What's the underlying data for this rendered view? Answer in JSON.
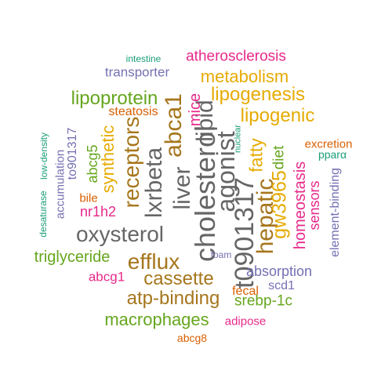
{
  "palette": {
    "teal": "#1b9e77",
    "orange": "#d95f02",
    "purple": "#7570b3",
    "magenta": "#e7298a",
    "green": "#66a61e",
    "gold": "#e6ab02",
    "brown": "#a6761d",
    "gray": "#666666"
  },
  "words": [
    {
      "text": "intestine",
      "color": "#1b9e77"
    },
    {
      "text": "atherosclerosis",
      "color": "#e7298a"
    },
    {
      "text": "transporter",
      "color": "#7570b3"
    },
    {
      "text": "metabolism",
      "color": "#e6ab02"
    },
    {
      "text": "lipogenesis",
      "color": "#e6ab02"
    },
    {
      "text": "lipoprotein",
      "color": "#66a61e"
    },
    {
      "text": "lipogenic",
      "color": "#e6ab02"
    },
    {
      "text": "steatosis",
      "color": "#d95f02"
    },
    {
      "text": "to901317",
      "color": "#7570b3"
    },
    {
      "text": "low-density",
      "color": "#1b9e77"
    },
    {
      "text": "accumulation",
      "color": "#7570b3"
    },
    {
      "text": "abcg5",
      "color": "#66a61e"
    },
    {
      "text": "synthetic",
      "color": "#e6ab02"
    },
    {
      "text": "receptors",
      "color": "#a6761d"
    },
    {
      "text": "lxrbeta",
      "color": "#666666"
    },
    {
      "text": "liver",
      "color": "#666666"
    },
    {
      "text": "abca1",
      "color": "#a6761d"
    },
    {
      "text": "cholesterol",
      "color": "#666666"
    },
    {
      "text": "lipid",
      "color": "#666666"
    },
    {
      "text": "agonist",
      "color": "#666666"
    },
    {
      "text": "mice",
      "color": "#e7298a"
    },
    {
      "text": "t0901317",
      "color": "#666666"
    },
    {
      "text": "hepatic",
      "color": "#a6761d"
    },
    {
      "text": "fatty",
      "color": "#e6ab02"
    },
    {
      "text": "nuclear",
      "color": "#1b9e77"
    },
    {
      "text": "gw3965",
      "color": "#e6ab02"
    },
    {
      "text": "diet",
      "color": "#66a61e"
    },
    {
      "text": "excretion",
      "color": "#d95f02"
    },
    {
      "text": "pparα",
      "color": "#1b9e77"
    },
    {
      "text": "homeostasis",
      "color": "#e7298a"
    },
    {
      "text": "sensors",
      "color": "#e7298a"
    },
    {
      "text": "element-binding",
      "color": "#7570b3"
    },
    {
      "text": "bile",
      "color": "#d95f02"
    },
    {
      "text": "desaturase",
      "color": "#1b9e77"
    },
    {
      "text": "nr1h2",
      "color": "#e7298a"
    },
    {
      "text": "oxysterol",
      "color": "#666666"
    },
    {
      "text": "triglyceride",
      "color": "#66a61e"
    },
    {
      "text": "efflux",
      "color": "#a6761d"
    },
    {
      "text": "foam",
      "color": "#7570b3"
    },
    {
      "text": "absorption",
      "color": "#7570b3"
    },
    {
      "text": "abcg1",
      "color": "#e7298a"
    },
    {
      "text": "cassette",
      "color": "#a6761d"
    },
    {
      "text": "scd1",
      "color": "#7570b3"
    },
    {
      "text": "atp-binding",
      "color": "#a6761d"
    },
    {
      "text": "fecal",
      "color": "#d95f02"
    },
    {
      "text": "srebp-1c",
      "color": "#66a61e"
    },
    {
      "text": "macrophages",
      "color": "#66a61e"
    },
    {
      "text": "adipose",
      "color": "#e7298a"
    },
    {
      "text": "abcg8",
      "color": "#d95f02"
    }
  ]
}
